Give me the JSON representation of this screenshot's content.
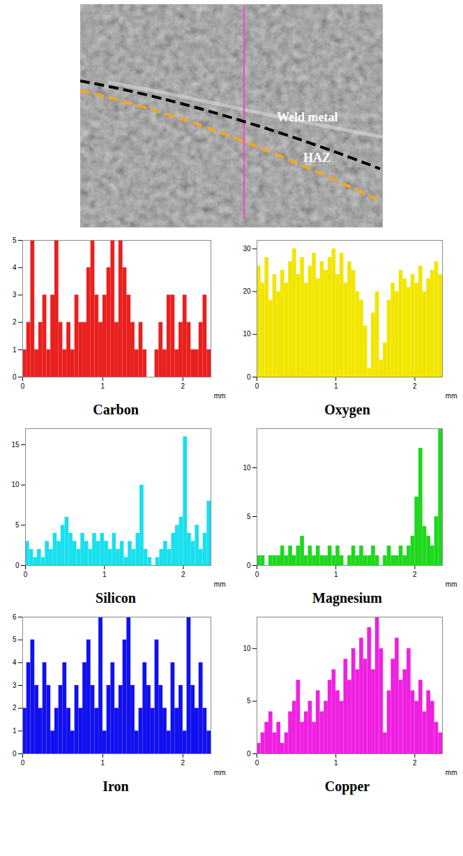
{
  "micrograph": {
    "labels": [
      "Weld metal",
      "HAZ"
    ]
  },
  "chart_data": [
    {
      "type": "bar",
      "title": "Carbon",
      "x_label": "mm",
      "color": "#e8201e",
      "x": [
        0,
        0.05,
        0.1,
        0.15,
        0.2,
        0.25,
        0.3,
        0.35,
        0.4,
        0.45,
        0.5,
        0.55,
        0.6,
        0.65,
        0.7,
        0.75,
        0.8,
        0.85,
        0.9,
        0.95,
        1,
        1.05,
        1.1,
        1.15,
        1.2,
        1.25,
        1.3,
        1.35,
        1.4,
        1.45,
        1.5,
        1.55,
        1.6,
        1.65,
        1.7,
        1.75,
        1.8,
        1.85,
        1.9,
        1.95,
        2,
        2.05,
        2.1,
        2.15,
        2.2,
        2.25,
        2.3
      ],
      "values": [
        1,
        2,
        5,
        1,
        2,
        3,
        1,
        3,
        5,
        2,
        1,
        2,
        1,
        3,
        2,
        2,
        4,
        5,
        3,
        2,
        3,
        4,
        5,
        2,
        5,
        4,
        3,
        2,
        1,
        2,
        1,
        0,
        0,
        1,
        2,
        1,
        3,
        3,
        1,
        2,
        3,
        2,
        1,
        1,
        2,
        3,
        1
      ],
      "xlim": [
        0,
        2.35
      ],
      "xticks": [
        0,
        1,
        2
      ],
      "ylim": [
        0,
        5
      ],
      "yticks": [
        0,
        1,
        2,
        3,
        4,
        5
      ]
    },
    {
      "type": "bar",
      "title": "Oxygen",
      "x_label": "mm",
      "color": "#f2e600",
      "x": [
        0,
        0.05,
        0.1,
        0.15,
        0.2,
        0.25,
        0.3,
        0.35,
        0.4,
        0.45,
        0.5,
        0.55,
        0.6,
        0.65,
        0.7,
        0.75,
        0.8,
        0.85,
        0.9,
        0.95,
        1,
        1.05,
        1.1,
        1.15,
        1.2,
        1.25,
        1.3,
        1.35,
        1.4,
        1.45,
        1.5,
        1.55,
        1.6,
        1.65,
        1.7,
        1.75,
        1.8,
        1.85,
        1.9,
        1.95,
        2,
        2.05,
        2.1,
        2.15,
        2.2,
        2.25,
        2.3
      ],
      "values": [
        26,
        22,
        28,
        18,
        24,
        20,
        25,
        22,
        27,
        30,
        24,
        28,
        22,
        26,
        29,
        23,
        27,
        25,
        28,
        30,
        24,
        29,
        22,
        27,
        25,
        20,
        18,
        12,
        2,
        15,
        20,
        4,
        8,
        18,
        22,
        20,
        25,
        23,
        21,
        24,
        22,
        26,
        20,
        23,
        25,
        27,
        24
      ],
      "xlim": [
        0,
        2.35
      ],
      "xticks": [
        0,
        1,
        2
      ],
      "ylim": [
        0,
        32
      ],
      "yticks": [
        0,
        10,
        20,
        30
      ]
    },
    {
      "type": "bar",
      "title": "Silicon",
      "x_label": "mm",
      "color": "#18e0ee",
      "x": [
        0,
        0.05,
        0.1,
        0.15,
        0.2,
        0.25,
        0.3,
        0.35,
        0.4,
        0.45,
        0.5,
        0.55,
        0.6,
        0.65,
        0.7,
        0.75,
        0.8,
        0.85,
        0.9,
        0.95,
        1,
        1.05,
        1.1,
        1.15,
        1.2,
        1.25,
        1.3,
        1.35,
        1.4,
        1.45,
        1.5,
        1.55,
        1.6,
        1.65,
        1.7,
        1.75,
        1.8,
        1.85,
        1.9,
        1.95,
        2,
        2.05,
        2.1,
        2.15,
        2.2,
        2.25,
        2.3
      ],
      "values": [
        3,
        2,
        1,
        2,
        1,
        3,
        2,
        4,
        3,
        5,
        6,
        4,
        3,
        2,
        4,
        3,
        2,
        4,
        3,
        4,
        3,
        2,
        4,
        2,
        3,
        1,
        3,
        2,
        4,
        10,
        2,
        1,
        0,
        1,
        2,
        3,
        2,
        4,
        5,
        6,
        16,
        4,
        3,
        5,
        2,
        4,
        8
      ],
      "xlim": [
        0,
        2.35
      ],
      "xticks": [
        0,
        1,
        2
      ],
      "ylim": [
        0,
        17
      ],
      "yticks": [
        0,
        5,
        10,
        15
      ]
    },
    {
      "type": "bar",
      "title": "Magnesium",
      "x_label": "mm",
      "color": "#1ed81e",
      "x": [
        0,
        0.05,
        0.1,
        0.15,
        0.2,
        0.25,
        0.3,
        0.35,
        0.4,
        0.45,
        0.5,
        0.55,
        0.6,
        0.65,
        0.7,
        0.75,
        0.8,
        0.85,
        0.9,
        0.95,
        1,
        1.05,
        1.1,
        1.15,
        1.2,
        1.25,
        1.3,
        1.35,
        1.4,
        1.45,
        1.5,
        1.55,
        1.6,
        1.65,
        1.7,
        1.75,
        1.8,
        1.85,
        1.9,
        1.95,
        2,
        2.05,
        2.1,
        2.15,
        2.2,
        2.25,
        2.3
      ],
      "values": [
        1,
        1,
        0,
        1,
        1,
        1,
        2,
        1,
        2,
        1,
        2,
        3,
        1,
        2,
        1,
        2,
        1,
        1,
        2,
        1,
        2,
        1,
        0,
        1,
        2,
        1,
        2,
        1,
        1,
        2,
        1,
        0,
        1,
        2,
        1,
        1,
        2,
        1,
        2,
        3,
        7,
        12,
        4,
        3,
        2,
        5,
        14
      ],
      "xlim": [
        0,
        2.35
      ],
      "xticks": [
        0,
        1,
        2
      ],
      "ylim": [
        0,
        14
      ],
      "yticks": [
        0,
        5,
        10
      ]
    },
    {
      "type": "bar",
      "title": "Iron",
      "x_label": "mm",
      "color": "#1010f0",
      "x": [
        0,
        0.05,
        0.1,
        0.15,
        0.2,
        0.25,
        0.3,
        0.35,
        0.4,
        0.45,
        0.5,
        0.55,
        0.6,
        0.65,
        0.7,
        0.75,
        0.8,
        0.85,
        0.9,
        0.95,
        1,
        1.05,
        1.1,
        1.15,
        1.2,
        1.25,
        1.3,
        1.35,
        1.4,
        1.45,
        1.5,
        1.55,
        1.6,
        1.65,
        1.7,
        1.75,
        1.8,
        1.85,
        1.9,
        1.95,
        2,
        2.05,
        2.1,
        2.15,
        2.2,
        2.25,
        2.3
      ],
      "values": [
        2,
        4,
        5,
        3,
        2,
        4,
        3,
        1,
        2,
        3,
        4,
        2,
        1,
        3,
        2,
        4,
        5,
        3,
        2,
        6,
        1,
        3,
        4,
        2,
        3,
        5,
        6,
        3,
        1,
        2,
        4,
        3,
        2,
        5,
        3,
        2,
        1,
        4,
        2,
        3,
        1,
        6,
        3,
        2,
        4,
        2,
        1
      ],
      "xlim": [
        0,
        2.35
      ],
      "xticks": [
        0,
        1,
        2
      ],
      "ylim": [
        0,
        6
      ],
      "yticks": [
        0,
        1,
        2,
        3,
        4,
        5,
        6
      ]
    },
    {
      "type": "bar",
      "title": "Copper",
      "x_label": "mm",
      "color": "#f020e0",
      "x": [
        0,
        0.05,
        0.1,
        0.15,
        0.2,
        0.25,
        0.3,
        0.35,
        0.4,
        0.45,
        0.5,
        0.55,
        0.6,
        0.65,
        0.7,
        0.75,
        0.8,
        0.85,
        0.9,
        0.95,
        1,
        1.05,
        1.1,
        1.15,
        1.2,
        1.25,
        1.3,
        1.35,
        1.4,
        1.45,
        1.5,
        1.55,
        1.6,
        1.65,
        1.7,
        1.75,
        1.8,
        1.85,
        1.9,
        1.95,
        2,
        2.05,
        2.1,
        2.15,
        2.2,
        2.25,
        2.3
      ],
      "values": [
        1,
        2,
        3,
        4,
        2,
        3,
        1,
        2,
        4,
        5,
        7,
        3,
        4,
        5,
        3,
        6,
        4,
        5,
        7,
        8,
        6,
        5,
        9,
        7,
        10,
        8,
        11,
        9,
        12,
        8,
        13,
        10,
        2,
        6,
        9,
        11,
        7,
        8,
        10,
        6,
        5,
        7,
        4,
        6,
        5,
        3,
        2
      ],
      "xlim": [
        0,
        2.35
      ],
      "xticks": [
        0,
        1,
        2
      ],
      "ylim": [
        0,
        13
      ],
      "yticks": [
        0,
        5,
        10
      ]
    }
  ]
}
